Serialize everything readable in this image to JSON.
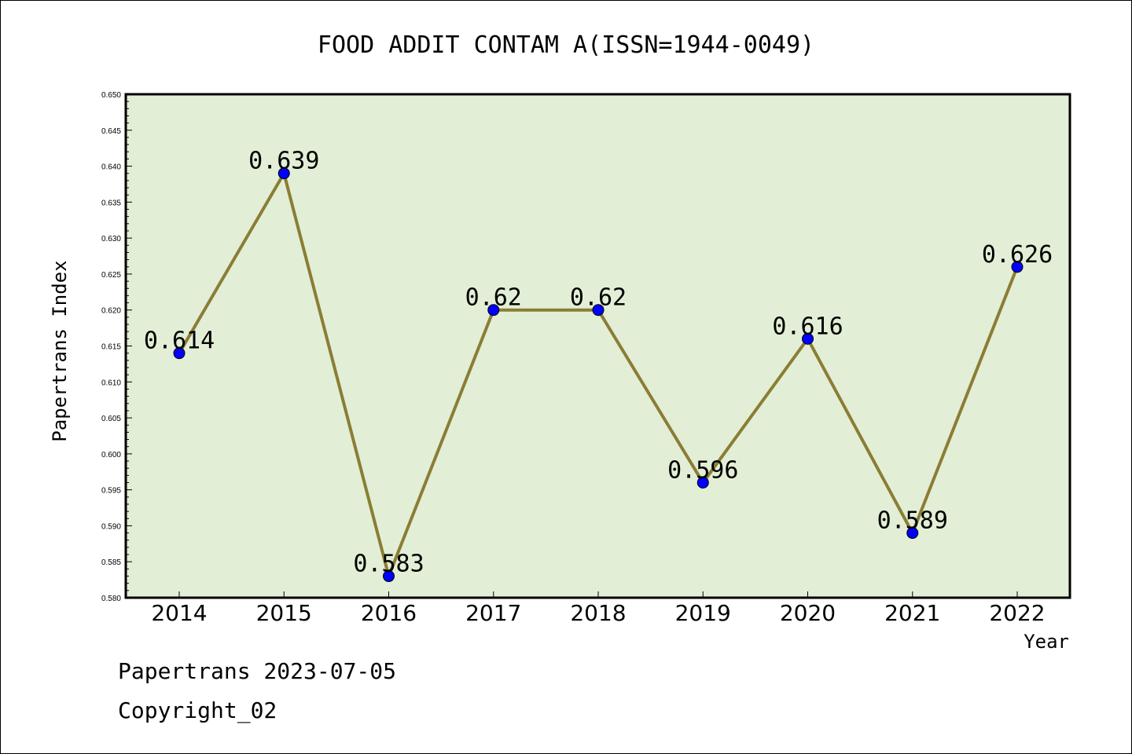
{
  "chart_data": {
    "type": "line",
    "title": "FOOD ADDIT CONTAM A(ISSN=1944-0049)",
    "xlabel": "Year",
    "ylabel": "Papertrans Index",
    "categories": [
      "2014",
      "2015",
      "2016",
      "2017",
      "2018",
      "2019",
      "2020",
      "2021",
      "2022"
    ],
    "values": [
      0.614,
      0.639,
      0.583,
      0.62,
      0.62,
      0.596,
      0.616,
      0.589,
      0.626
    ],
    "data_labels": [
      "0.614",
      "0.639",
      "0.583",
      "0.62",
      "0.62",
      "0.596",
      "0.616",
      "0.589",
      "0.626"
    ],
    "ylim": [
      0.58,
      0.65
    ],
    "yticks": [
      "0.580",
      "0.585",
      "0.590",
      "0.595",
      "0.600",
      "0.605",
      "0.610",
      "0.615",
      "0.620",
      "0.625",
      "0.630",
      "0.635",
      "0.640",
      "0.645",
      "0.650"
    ],
    "grid": false,
    "legend": "none",
    "colors": {
      "plot_background": "#e2efd6",
      "line": "#8b7d35",
      "marker": "#0000ff"
    }
  },
  "footer": {
    "date_line": "Papertrans 2023-07-05",
    "copyright": "Copyright_02"
  }
}
